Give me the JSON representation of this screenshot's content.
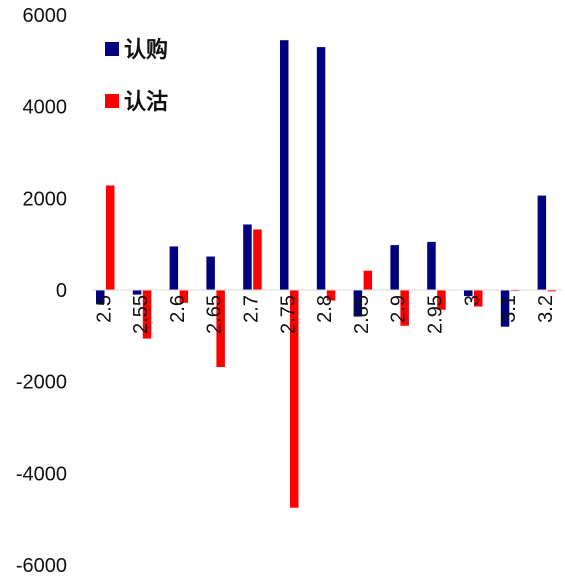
{
  "chart_data": {
    "type": "bar",
    "categories": [
      "2.5",
      "2.55",
      "2.6",
      "2.65",
      "2.7",
      "2.75",
      "2.8",
      "2.85",
      "2.9",
      "2.95",
      "3",
      "3.1",
      "3.2"
    ],
    "series": [
      {
        "name": "认购",
        "color": "#000080",
        "values": [
          -300,
          -100,
          950,
          730,
          1430,
          5450,
          5300,
          -580,
          980,
          1050,
          -130,
          -800,
          2060
        ]
      },
      {
        "name": "认沽",
        "color": "#ff0000",
        "values": [
          2280,
          -1060,
          -280,
          -1680,
          1320,
          -4750,
          -230,
          420,
          -780,
          -430,
          -360,
          -20,
          -30
        ]
      }
    ],
    "yticks": [
      "6000",
      "4000",
      "2000",
      "0",
      "-2000",
      "-4000",
      "-6000"
    ],
    "ylim": [
      -6000,
      6000
    ],
    "legend_position": "top-left",
    "grid": false
  }
}
